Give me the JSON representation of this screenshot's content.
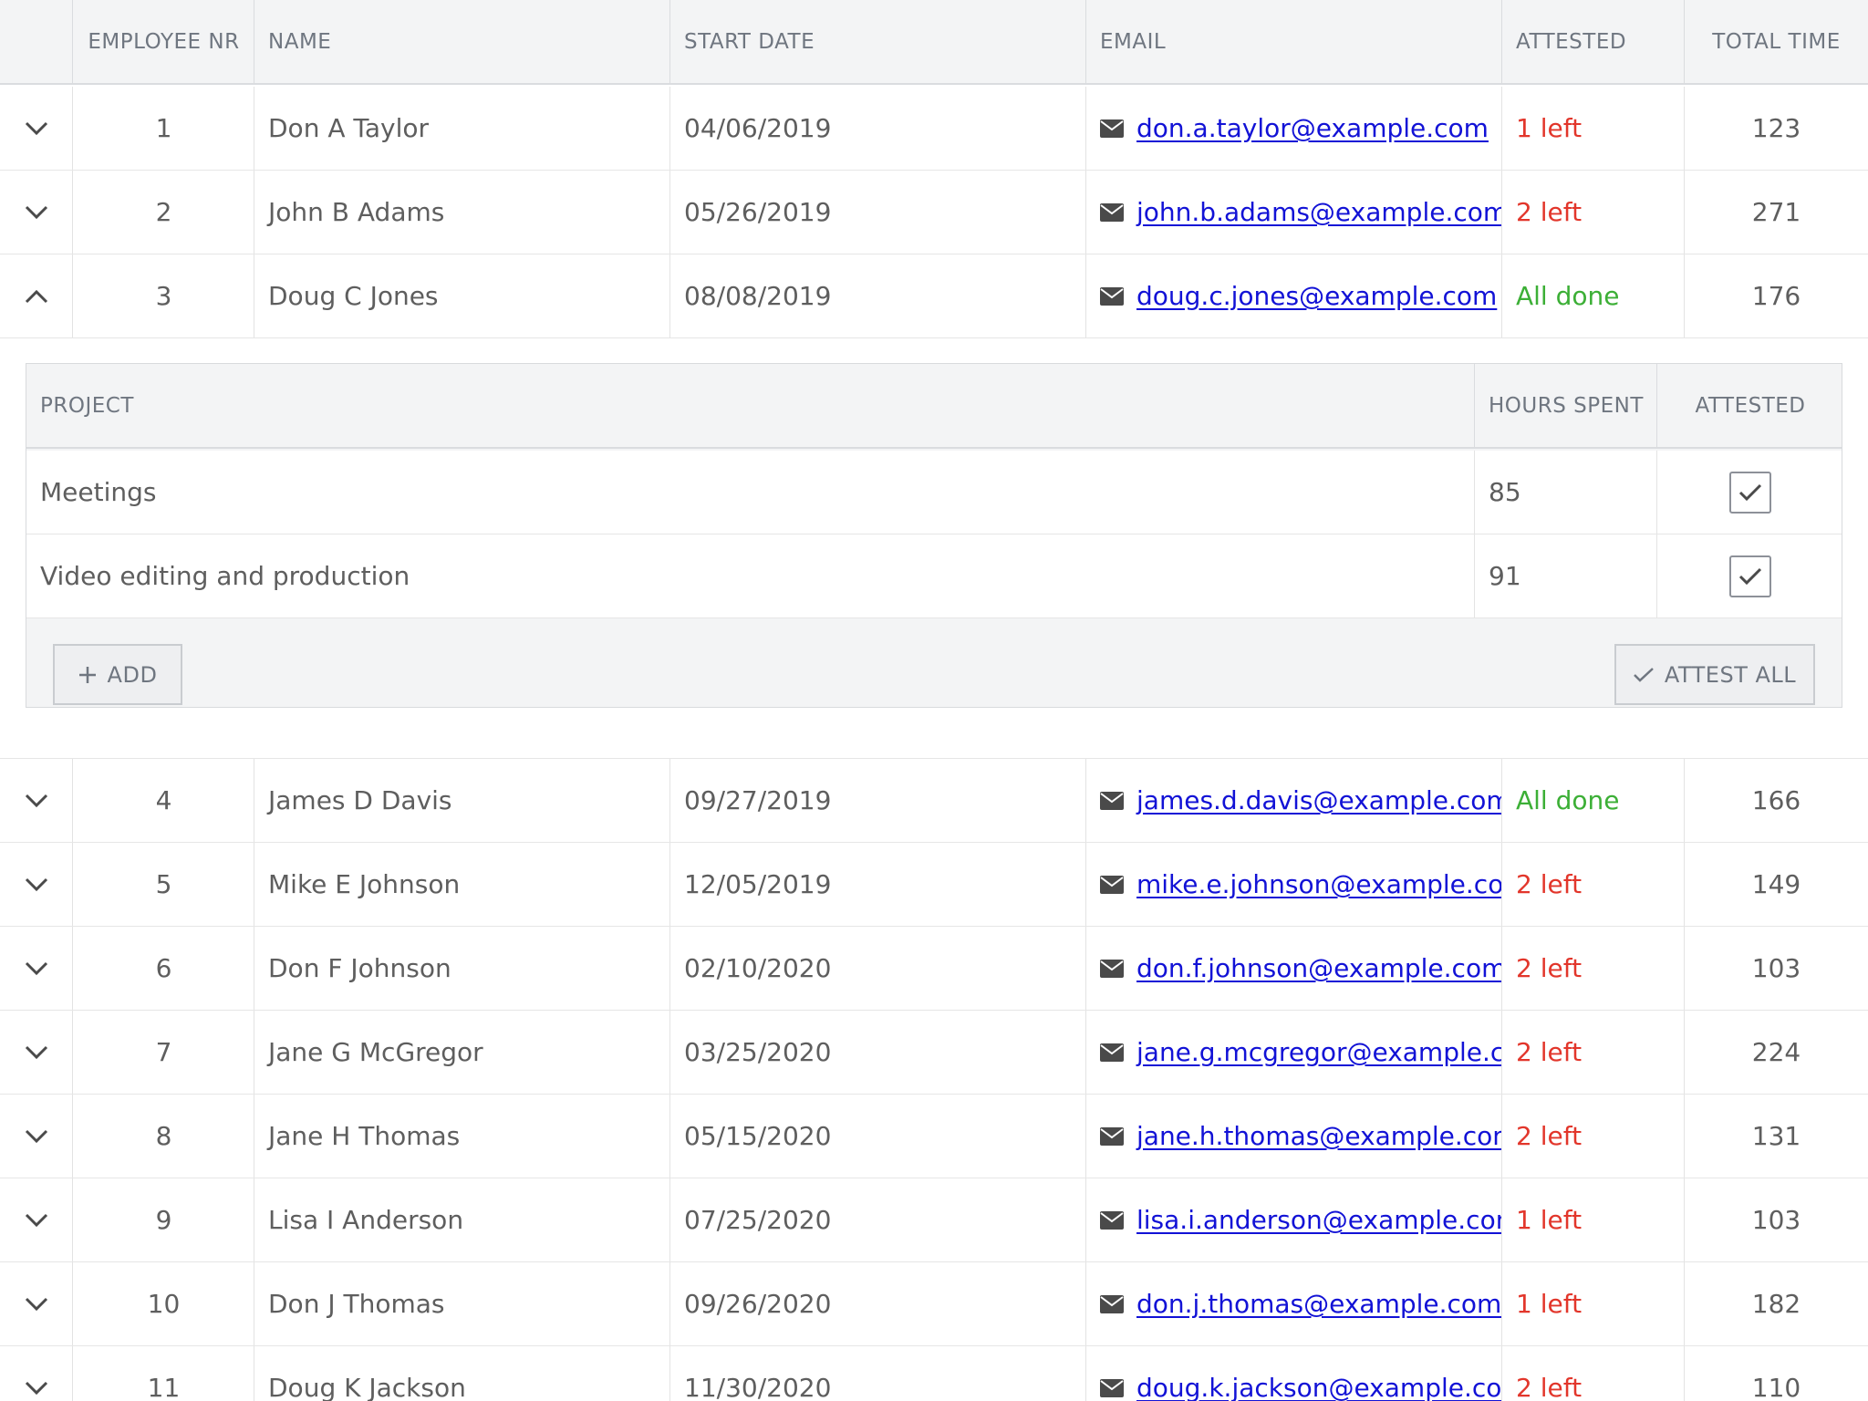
{
  "header": {
    "employee_nr": "EMPLOYEE NR",
    "name": "NAME",
    "start_date": "START DATE",
    "email": "EMAIL",
    "attested": "ATTESTED",
    "total_time": "TOTAL TIME"
  },
  "rows_top": [
    {
      "nr": "1",
      "name": "Don A Taylor",
      "date": "04/06/2019",
      "email": "don.a.taylor@example.com",
      "attested": "1 left",
      "status": "left",
      "total": "123",
      "expanded": false
    },
    {
      "nr": "2",
      "name": "John B Adams",
      "date": "05/26/2019",
      "email": "john.b.adams@example.com",
      "attested": "2 left",
      "status": "left",
      "total": "271",
      "expanded": false
    },
    {
      "nr": "3",
      "name": "Doug C Jones",
      "date": "08/08/2019",
      "email": "doug.c.jones@example.com",
      "attested": "All done",
      "status": "done",
      "total": "176",
      "expanded": true
    }
  ],
  "detail": {
    "header": {
      "project": "PROJECT",
      "hours_spent": "HOURS SPENT",
      "attested": "ATTESTED"
    },
    "rows": [
      {
        "project": "Meetings",
        "hours": "85",
        "checked": true
      },
      {
        "project": "Video editing and production",
        "hours": "91",
        "checked": true
      }
    ],
    "add_label": "ADD",
    "attest_all_label": "ATTEST ALL"
  },
  "rows_bottom": [
    {
      "nr": "4",
      "name": "James D Davis",
      "date": "09/27/2019",
      "email": "james.d.davis@example.com",
      "attested": "All done",
      "status": "done",
      "total": "166",
      "expanded": false
    },
    {
      "nr": "5",
      "name": "Mike E Johnson",
      "date": "12/05/2019",
      "email": "mike.e.johnson@example.com",
      "attested": "2 left",
      "status": "left",
      "total": "149",
      "expanded": false
    },
    {
      "nr": "6",
      "name": "Don F Johnson",
      "date": "02/10/2020",
      "email": "don.f.johnson@example.com",
      "attested": "2 left",
      "status": "left",
      "total": "103",
      "expanded": false
    },
    {
      "nr": "7",
      "name": "Jane G McGregor",
      "date": "03/25/2020",
      "email": "jane.g.mcgregor@example.com",
      "attested": "2 left",
      "status": "left",
      "total": "224",
      "expanded": false
    },
    {
      "nr": "8",
      "name": "Jane H Thomas",
      "date": "05/15/2020",
      "email": "jane.h.thomas@example.com",
      "attested": "2 left",
      "status": "left",
      "total": "131",
      "expanded": false
    },
    {
      "nr": "9",
      "name": "Lisa I Anderson",
      "date": "07/25/2020",
      "email": "lisa.i.anderson@example.com",
      "attested": "1 left",
      "status": "left",
      "total": "103",
      "expanded": false
    },
    {
      "nr": "10",
      "name": "Don J Thomas",
      "date": "09/26/2020",
      "email": "don.j.thomas@example.com",
      "attested": "1 left",
      "status": "left",
      "total": "182",
      "expanded": false
    },
    {
      "nr": "11",
      "name": "Doug K Jackson",
      "date": "11/30/2020",
      "email": "doug.k.jackson@example.com",
      "attested": "2 left",
      "status": "left",
      "total": "110",
      "expanded": false
    }
  ],
  "colors": {
    "left": "#e2362b",
    "done": "#3caf36",
    "link": "#1212d6"
  }
}
